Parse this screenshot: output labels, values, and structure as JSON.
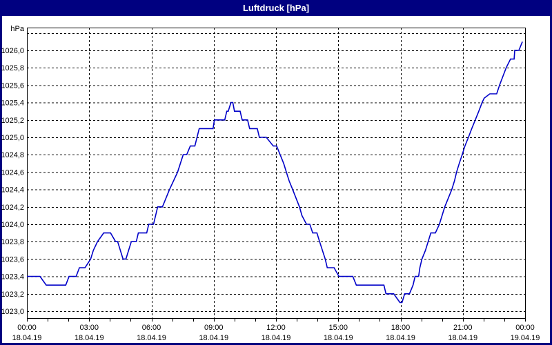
{
  "title": "Luftdruck [hPa]",
  "colors": {
    "titlebar_bg": "#000080",
    "titlebar_text": "#ffffff",
    "window_border": "#000080",
    "background": "#ffffff",
    "curve": "#0000c8",
    "grid": "#000000",
    "frame": "#000000",
    "text": "#000000"
  },
  "y_axis": {
    "unit": "hPa",
    "top_label_value": 1026.0,
    "label_step": 0.2,
    "labels": [
      "1026,0",
      "1025,8",
      "1025,6",
      "1025,4",
      "1025,2",
      "1025,0",
      "1024,8",
      "1024,6",
      "1024,4",
      "1024,2",
      "1024,0",
      "1023,8",
      "1023,6",
      "1023,4",
      "1023,2",
      "1023,0"
    ],
    "grid_min": 1023.0,
    "grid_max": 1026.2,
    "grid_step": 0.2
  },
  "x_axis": {
    "tick_step_hours": 3,
    "minor_tick_hours": 1,
    "ticks": [
      {
        "time": "00:00",
        "date": "18.04.19"
      },
      {
        "time": "03:00",
        "date": "18.04.19"
      },
      {
        "time": "06:00",
        "date": "18.04.19"
      },
      {
        "time": "09:00",
        "date": "18.04.19"
      },
      {
        "time": "12:00",
        "date": "18.04.19"
      },
      {
        "time": "15:00",
        "date": "18.04.19"
      },
      {
        "time": "18:00",
        "date": "18.04.19"
      },
      {
        "time": "21:00",
        "date": "18.04.19"
      },
      {
        "time": "00:00",
        "date": "19.04.19"
      }
    ]
  },
  "chart_data": {
    "type": "line",
    "title": "Luftdruck [hPa]",
    "ylabel": "hPa",
    "ylim": [
      1023.0,
      1026.3
    ],
    "xlim_hours": [
      0,
      24
    ],
    "grid": "dashed, y every 0.2 hPa, x every 3 h",
    "legend_position": "none",
    "series": [
      {
        "name": "Luftdruck [hPa]",
        "x_unit": "hours since 18.04.19 00:00",
        "y_unit": "hPa",
        "points": [
          [
            0.0,
            1023.4
          ],
          [
            0.63,
            1023.4
          ],
          [
            0.93,
            1023.3
          ],
          [
            1.87,
            1023.3
          ],
          [
            2.03,
            1023.4
          ],
          [
            2.37,
            1023.4
          ],
          [
            2.53,
            1023.5
          ],
          [
            2.8,
            1023.5
          ],
          [
            3.07,
            1023.6
          ],
          [
            3.2,
            1023.7
          ],
          [
            3.4,
            1023.8
          ],
          [
            3.7,
            1023.9
          ],
          [
            4.03,
            1023.9
          ],
          [
            4.27,
            1023.8
          ],
          [
            4.37,
            1023.8
          ],
          [
            4.63,
            1023.6
          ],
          [
            4.77,
            1023.6
          ],
          [
            5.03,
            1023.8
          ],
          [
            5.27,
            1023.8
          ],
          [
            5.37,
            1023.9
          ],
          [
            5.77,
            1023.9
          ],
          [
            5.87,
            1024.0
          ],
          [
            6.1,
            1024.0
          ],
          [
            6.3,
            1024.2
          ],
          [
            6.53,
            1024.2
          ],
          [
            6.87,
            1024.4
          ],
          [
            7.26,
            1024.6
          ],
          [
            7.53,
            1024.8
          ],
          [
            7.7,
            1024.8
          ],
          [
            7.87,
            1024.9
          ],
          [
            8.09,
            1024.9
          ],
          [
            8.3,
            1025.1
          ],
          [
            8.97,
            1025.1
          ],
          [
            9.03,
            1025.2
          ],
          [
            9.53,
            1025.2
          ],
          [
            9.63,
            1025.3
          ],
          [
            9.7,
            1025.3
          ],
          [
            9.83,
            1025.4
          ],
          [
            9.92,
            1025.4
          ],
          [
            10.0,
            1025.3
          ],
          [
            10.27,
            1025.3
          ],
          [
            10.37,
            1025.2
          ],
          [
            10.63,
            1025.2
          ],
          [
            10.73,
            1025.1
          ],
          [
            11.1,
            1025.1
          ],
          [
            11.2,
            1025.0
          ],
          [
            11.53,
            1025.0
          ],
          [
            11.87,
            1024.9
          ],
          [
            12.03,
            1024.9
          ],
          [
            12.2,
            1024.8
          ],
          [
            12.37,
            1024.7
          ],
          [
            12.5,
            1024.6
          ],
          [
            12.63,
            1024.5
          ],
          [
            12.8,
            1024.4
          ],
          [
            13.13,
            1024.2
          ],
          [
            13.25,
            1024.1
          ],
          [
            13.47,
            1024.0
          ],
          [
            13.63,
            1024.0
          ],
          [
            13.77,
            1023.9
          ],
          [
            13.97,
            1023.9
          ],
          [
            14.1,
            1023.8
          ],
          [
            14.37,
            1023.6
          ],
          [
            14.47,
            1023.5
          ],
          [
            14.8,
            1023.5
          ],
          [
            15.03,
            1023.4
          ],
          [
            15.7,
            1023.4
          ],
          [
            15.87,
            1023.3
          ],
          [
            17.2,
            1023.3
          ],
          [
            17.3,
            1023.2
          ],
          [
            17.67,
            1023.2
          ],
          [
            17.97,
            1023.1
          ],
          [
            18.07,
            1023.1
          ],
          [
            18.2,
            1023.2
          ],
          [
            18.43,
            1023.2
          ],
          [
            18.6,
            1023.3
          ],
          [
            18.7,
            1023.4
          ],
          [
            18.87,
            1023.4
          ],
          [
            18.93,
            1023.5
          ],
          [
            19.03,
            1023.6
          ],
          [
            19.2,
            1023.7
          ],
          [
            19.33,
            1023.8
          ],
          [
            19.46,
            1023.9
          ],
          [
            19.68,
            1023.9
          ],
          [
            19.87,
            1024.0
          ],
          [
            20.0,
            1024.1
          ],
          [
            20.13,
            1024.2
          ],
          [
            20.3,
            1024.3
          ],
          [
            20.47,
            1024.4
          ],
          [
            20.6,
            1024.5
          ],
          [
            20.7,
            1024.6
          ],
          [
            20.83,
            1024.7
          ],
          [
            20.97,
            1024.8
          ],
          [
            21.1,
            1024.9
          ],
          [
            21.27,
            1025.0
          ],
          [
            21.43,
            1025.1
          ],
          [
            21.6,
            1025.2
          ],
          [
            21.77,
            1025.3
          ],
          [
            21.93,
            1025.4
          ],
          [
            22.03,
            1025.45
          ],
          [
            22.3,
            1025.5
          ],
          [
            22.63,
            1025.5
          ],
          [
            22.77,
            1025.6
          ],
          [
            23.09,
            1025.8
          ],
          [
            23.3,
            1025.9
          ],
          [
            23.47,
            1025.9
          ],
          [
            23.5,
            1026.0
          ],
          [
            23.7,
            1026.0
          ],
          [
            23.87,
            1026.1
          ]
        ]
      }
    ]
  }
}
